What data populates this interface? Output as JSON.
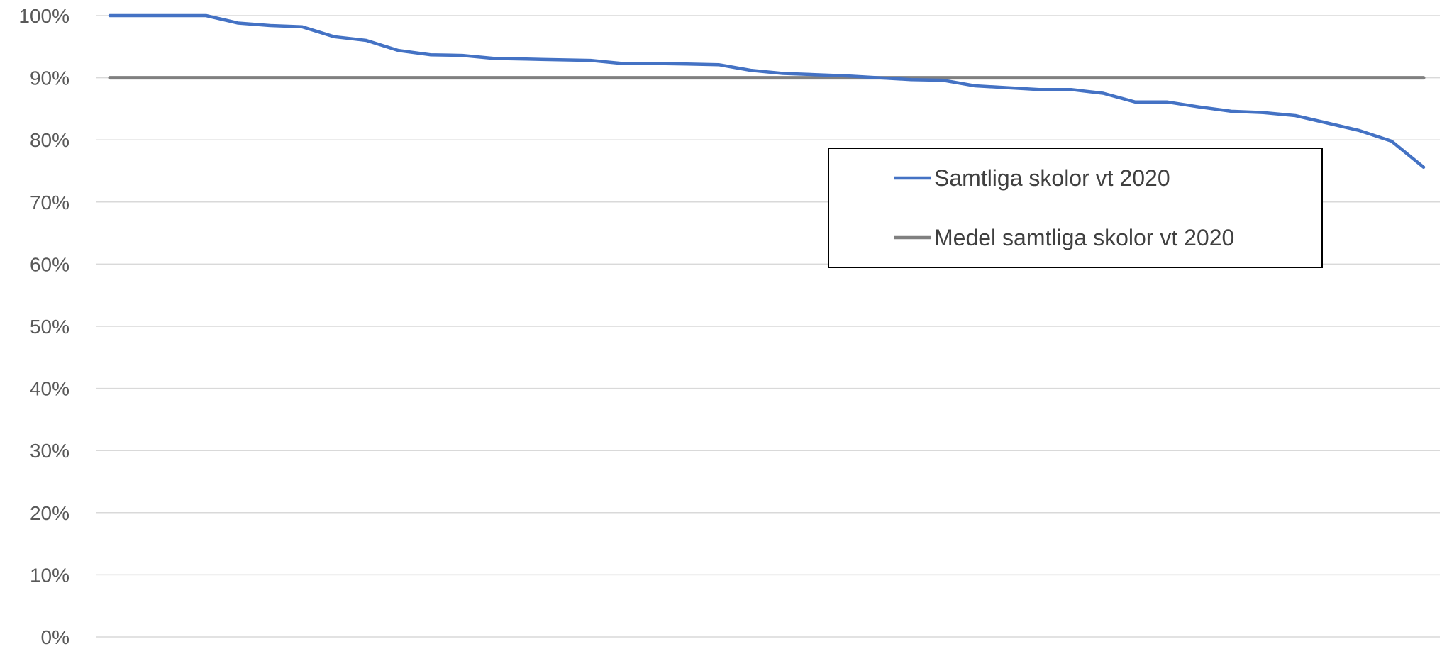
{
  "chart_data": {
    "type": "line",
    "title": "",
    "xlabel": "",
    "ylabel": "",
    "ylim": [
      0,
      100
    ],
    "y_ticks": [
      0,
      10,
      20,
      30,
      40,
      50,
      60,
      70,
      80,
      90,
      100
    ],
    "y_tick_labels": [
      "0%",
      "10%",
      "20%",
      "30%",
      "40%",
      "50%",
      "60%",
      "70%",
      "80%",
      "90%",
      "100%"
    ],
    "grid": true,
    "legend_position": "right",
    "x": [
      1,
      2,
      3,
      4,
      5,
      6,
      7,
      8,
      9,
      10,
      11,
      12,
      13,
      14,
      15,
      16,
      17,
      18,
      19,
      20,
      21,
      22,
      23,
      24,
      25,
      26,
      27,
      28,
      29,
      30,
      31,
      32,
      33,
      34,
      35,
      36,
      37,
      38,
      39,
      40,
      41,
      42
    ],
    "series": [
      {
        "name": "Samtliga skolor vt 2020",
        "color": "#4472c4",
        "values": [
          100,
          100,
          100,
          100,
          98.8,
          98.4,
          98.2,
          96.6,
          96.0,
          94.4,
          93.7,
          93.6,
          93.1,
          93.0,
          92.9,
          92.8,
          92.3,
          92.3,
          92.2,
          92.1,
          91.2,
          90.7,
          90.5,
          90.3,
          90.0,
          89.7,
          89.6,
          88.7,
          88.4,
          88.1,
          88.1,
          87.5,
          86.1,
          86.1,
          85.3,
          84.6,
          84.4,
          83.9,
          82.7,
          81.5,
          79.8,
          75.6
        ]
      },
      {
        "name": "Medel samtliga skolor vt 2020",
        "color": "#808080",
        "values": [
          90,
          90,
          90,
          90,
          90,
          90,
          90,
          90,
          90,
          90,
          90,
          90,
          90,
          90,
          90,
          90,
          90,
          90,
          90,
          90,
          90,
          90,
          90,
          90,
          90,
          90,
          90,
          90,
          90,
          90,
          90,
          90,
          90,
          90,
          90,
          90,
          90,
          90,
          90,
          90,
          90,
          90
        ]
      }
    ]
  }
}
